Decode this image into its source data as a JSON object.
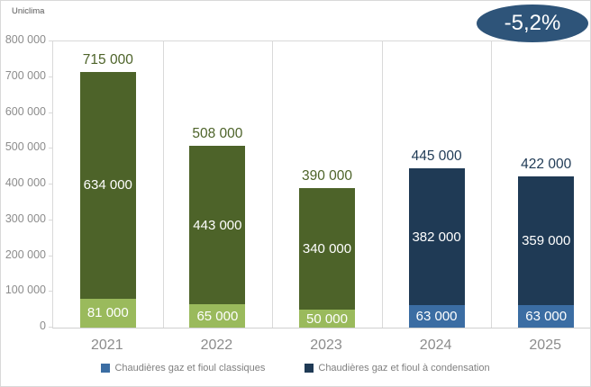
{
  "watermark": "Uniclima",
  "badge": {
    "label": "-5,2%",
    "bg": "#2e5479",
    "text_color": "#ffffff"
  },
  "colors": {
    "classic_green": "#9aba5c",
    "condensation_green": "#4d6329",
    "classic_blue": "#3b6da3",
    "condensation_navy": "#1f3a55",
    "axis_text": "#8c8c8c",
    "legend_text": "#7f7f7f",
    "gridline": "#d9d9d9"
  },
  "chart_data": {
    "type": "bar",
    "stacked": true,
    "title": "",
    "xlabel": "",
    "ylabel": "",
    "categories": [
      "2021",
      "2022",
      "2023",
      "2024",
      "2025"
    ],
    "series": [
      {
        "name": "Chaudières gaz et fioul classiques",
        "values": [
          81000,
          65000,
          50000,
          63000,
          63000
        ],
        "labels": [
          "81 000",
          "65 000",
          "50 000",
          "63 000",
          "63 000"
        ],
        "colors": [
          "#9aba5c",
          "#9aba5c",
          "#9aba5c",
          "#3b6da3",
          "#3b6da3"
        ]
      },
      {
        "name": "Chaudières gaz et fioul à condensation",
        "values": [
          634000,
          443000,
          340000,
          382000,
          359000
        ],
        "labels": [
          "634 000",
          "443 000",
          "340 000",
          "382 000",
          "359 000"
        ],
        "colors": [
          "#4d6329",
          "#4d6329",
          "#4d6329",
          "#1f3a55",
          "#1f3a55"
        ]
      }
    ],
    "totals": [
      715000,
      508000,
      390000,
      445000,
      422000
    ],
    "total_labels": [
      "715 000",
      "508 000",
      "390 000",
      "445 000",
      "422 000"
    ],
    "total_label_colors": [
      "#4d6329",
      "#4d6329",
      "#4d6329",
      "#1f3a55",
      "#1f3a55"
    ],
    "y_ticks": [
      "800 000",
      "700 000",
      "600 000",
      "500 000",
      "400 000",
      "300 000",
      "200 000",
      "100 000",
      "0"
    ],
    "ylim": [
      0,
      800000
    ],
    "grid": "vertical-category-separators",
    "legend_position": "bottom",
    "legend": [
      {
        "label": "Chaudières gaz et fioul classiques",
        "color": "#3b6da3"
      },
      {
        "label": "Chaudières gaz et fioul à condensation",
        "color": "#1f3a55"
      }
    ],
    "annotation": "-5,2%"
  }
}
